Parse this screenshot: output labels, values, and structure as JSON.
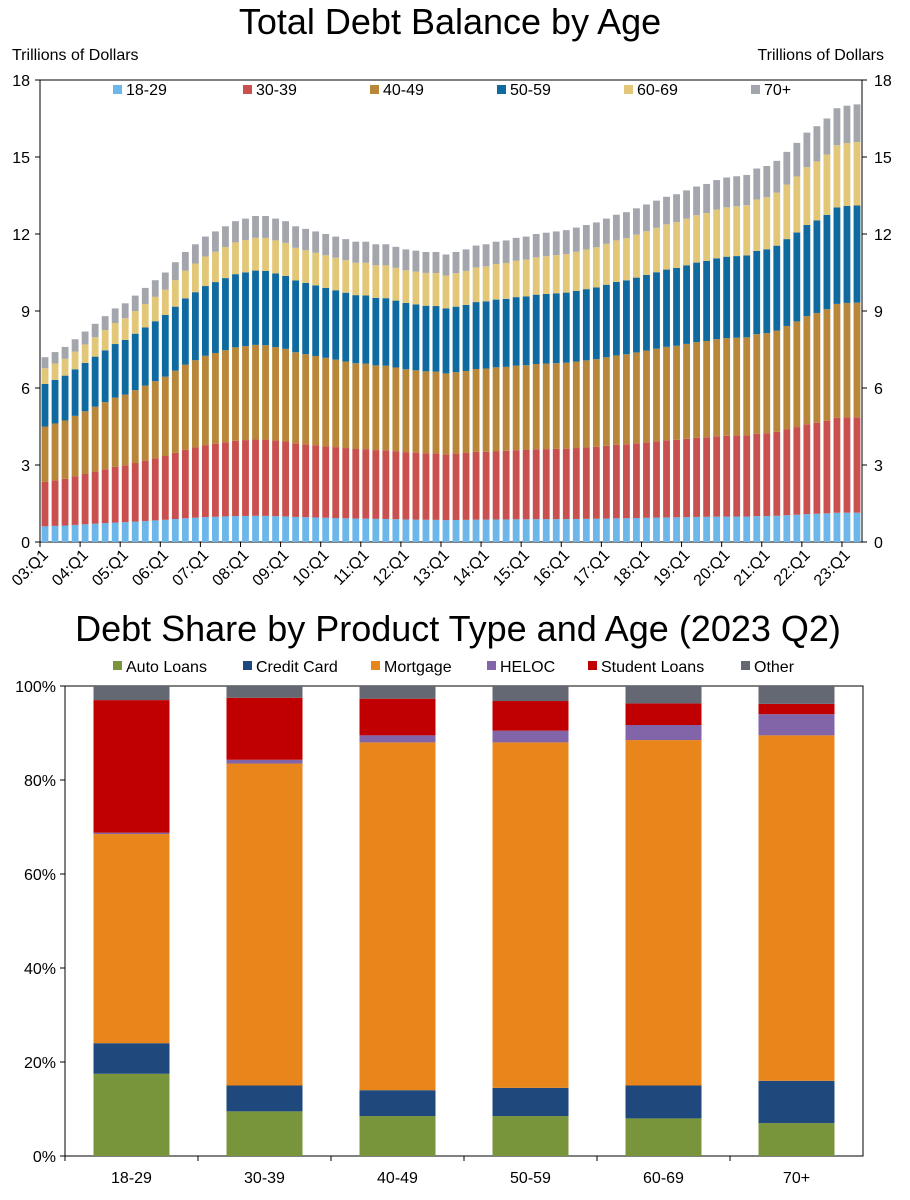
{
  "chart_data": [
    {
      "type": "bar",
      "stacked": true,
      "title": "Total Debt Balance by Age",
      "ylabel_left": "Trillions of Dollars",
      "ylabel_right": "Trillions of Dollars",
      "ylim": [
        0,
        18
      ],
      "yticks": [
        "0",
        "3",
        "6",
        "9",
        "12",
        "15",
        "18"
      ],
      "xtick_labels": [
        "03:Q1",
        "04:Q1",
        "05:Q1",
        "06:Q1",
        "07:Q1",
        "08:Q1",
        "09:Q1",
        "10:Q1",
        "11:Q1",
        "12:Q1",
        "13:Q1",
        "14:Q1",
        "15:Q1",
        "16:Q1",
        "17:Q1",
        "18:Q1",
        "19:Q1",
        "20:Q1",
        "21:Q1",
        "22:Q1",
        "23:Q1"
      ],
      "legend_position": "top",
      "grid": false,
      "x": [
        "2003 Q1",
        "2003 Q2",
        "2003 Q3",
        "2003 Q4",
        "2004 Q1",
        "2004 Q2",
        "2004 Q3",
        "2004 Q4",
        "2005 Q1",
        "2005 Q2",
        "2005 Q3",
        "2005 Q4",
        "2006 Q1",
        "2006 Q2",
        "2006 Q3",
        "2006 Q4",
        "2007 Q1",
        "2007 Q2",
        "2007 Q3",
        "2007 Q4",
        "2008 Q1",
        "2008 Q2",
        "2008 Q3",
        "2008 Q4",
        "2009 Q1",
        "2009 Q2",
        "2009 Q3",
        "2009 Q4",
        "2010 Q1",
        "2010 Q2",
        "2010 Q3",
        "2010 Q4",
        "2011 Q1",
        "2011 Q2",
        "2011 Q3",
        "2011 Q4",
        "2012 Q1",
        "2012 Q2",
        "2012 Q3",
        "2012 Q4",
        "2013 Q1",
        "2013 Q2",
        "2013 Q3",
        "2013 Q4",
        "2014 Q1",
        "2014 Q2",
        "2014 Q3",
        "2014 Q4",
        "2015 Q1",
        "2015 Q2",
        "2015 Q3",
        "2015 Q4",
        "2016 Q1",
        "2016 Q2",
        "2016 Q3",
        "2016 Q4",
        "2017 Q1",
        "2017 Q2",
        "2017 Q3",
        "2017 Q4",
        "2018 Q1",
        "2018 Q2",
        "2018 Q3",
        "2018 Q4",
        "2019 Q1",
        "2019 Q2",
        "2019 Q3",
        "2019 Q4",
        "2020 Q1",
        "2020 Q2",
        "2020 Q3",
        "2020 Q4",
        "2021 Q1",
        "2021 Q2",
        "2021 Q3",
        "2021 Q4",
        "2022 Q1",
        "2022 Q2",
        "2022 Q3",
        "2022 Q4",
        "2023 Q1",
        "2023 Q2"
      ],
      "total": [
        7.2,
        7.4,
        7.6,
        7.9,
        8.2,
        8.5,
        8.8,
        9.1,
        9.3,
        9.6,
        9.9,
        10.2,
        10.5,
        10.9,
        11.3,
        11.6,
        11.9,
        12.1,
        12.3,
        12.5,
        12.6,
        12.7,
        12.7,
        12.6,
        12.5,
        12.3,
        12.2,
        12.1,
        12.0,
        11.9,
        11.8,
        11.7,
        11.7,
        11.6,
        11.6,
        11.5,
        11.4,
        11.35,
        11.3,
        11.3,
        11.2,
        11.3,
        11.4,
        11.55,
        11.6,
        11.7,
        11.75,
        11.85,
        11.9,
        12.0,
        12.05,
        12.1,
        12.15,
        12.25,
        12.35,
        12.45,
        12.6,
        12.75,
        12.85,
        13.0,
        13.15,
        13.3,
        13.45,
        13.55,
        13.7,
        13.85,
        13.95,
        14.1,
        14.2,
        14.25,
        14.3,
        14.55,
        14.65,
        14.85,
        15.2,
        15.55,
        15.95,
        16.2,
        16.5,
        16.9,
        17.0,
        17.05
      ],
      "series": [
        {
          "name": "18-29",
          "color": "#6cb6ea"
        },
        {
          "name": "30-39",
          "color": "#c9504e"
        },
        {
          "name": "40-49",
          "color": "#b9873a"
        },
        {
          "name": "50-59",
          "color": "#0f6aa0"
        },
        {
          "name": "60-69",
          "color": "#e3c779"
        },
        {
          "name": "70+",
          "color": "#a4a6ad"
        }
      ]
    },
    {
      "type": "bar",
      "stacked": true,
      "title": "Debt Share by Product Type and Age (2023 Q2)",
      "ylim": [
        0,
        100
      ],
      "yticks": [
        "0%",
        "20%",
        "40%",
        "60%",
        "80%",
        "100%"
      ],
      "categories": [
        "18-29",
        "30-39",
        "40-49",
        "50-59",
        "60-69",
        "70+"
      ],
      "legend_position": "top",
      "grid": false,
      "series": [
        {
          "name": "Auto Loans",
          "color": "#79953b",
          "values": [
            17.5,
            9.5,
            8.5,
            8.5,
            8,
            7
          ]
        },
        {
          "name": "Credit Card",
          "color": "#1f487d",
          "values": [
            6.5,
            5.5,
            5.5,
            6,
            7,
            9
          ]
        },
        {
          "name": "Mortgage",
          "color": "#e8861c",
          "values": [
            44.5,
            68.5,
            74,
            73.5,
            73.5,
            73.5
          ]
        },
        {
          "name": "HELOC",
          "color": "#8264a8",
          "values": [
            0.3,
            0.8,
            1.5,
            2.5,
            3.2,
            4.5
          ]
        },
        {
          "name": "Student Loans",
          "color": "#c00000",
          "values": [
            28.2,
            13.2,
            7.8,
            6.3,
            4.6,
            2.2
          ]
        },
        {
          "name": "Other",
          "color": "#646872",
          "values": [
            3,
            2.5,
            2.7,
            3.2,
            3.7,
            3.8
          ]
        }
      ]
    }
  ]
}
